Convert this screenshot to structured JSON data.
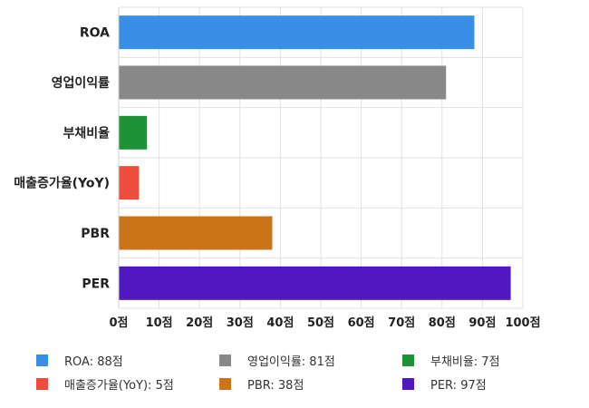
{
  "chart_data": {
    "type": "bar",
    "orientation": "horizontal",
    "title": "",
    "xlabel": "",
    "ylabel": "",
    "categories": [
      "ROA",
      "영업이익률",
      "부채비율",
      "매출증가율(YoY)",
      "PBR",
      "PER"
    ],
    "values": [
      88,
      81,
      7,
      5,
      38,
      97
    ],
    "colors": [
      "#3a8ee6",
      "#888888",
      "#1e9237",
      "#ee4c3c",
      "#cc7418",
      "#5118c2"
    ],
    "xlim": [
      0,
      100
    ],
    "x_ticks": [
      0,
      10,
      20,
      30,
      40,
      50,
      60,
      70,
      80,
      90,
      100
    ],
    "tick_suffix": "점",
    "grid": true,
    "legend_position": "bottom",
    "legend": [
      {
        "label": "ROA: 88점",
        "color": "#3a8ee6"
      },
      {
        "label": "영업이익률: 81점",
        "color": "#888888"
      },
      {
        "label": "부채비율: 7점",
        "color": "#1e9237"
      },
      {
        "label": "매출증가율(YoY): 5점",
        "color": "#ee4c3c"
      },
      {
        "label": "PBR: 38점",
        "color": "#cc7418"
      },
      {
        "label": "PER: 97점",
        "color": "#5118c2"
      }
    ]
  }
}
